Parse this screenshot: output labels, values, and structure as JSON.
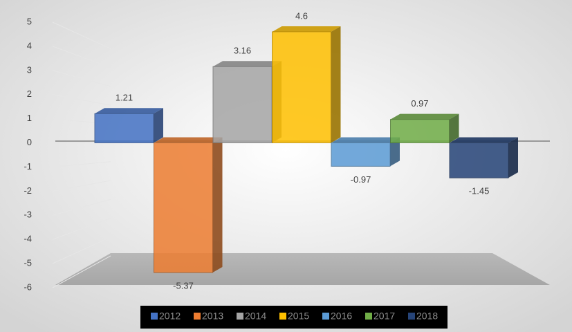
{
  "chart_data": {
    "type": "bar",
    "categories": [
      null
    ],
    "series": [
      {
        "name": "2012",
        "color": "#4472c4",
        "values": [
          1.21
        ]
      },
      {
        "name": "2013",
        "color": "#ed7d31",
        "values": [
          -5.37
        ]
      },
      {
        "name": "2014",
        "color": "#a5a5a5",
        "values": [
          3.16
        ]
      },
      {
        "name": "2015",
        "color": "#ffc000",
        "values": [
          4.6
        ]
      },
      {
        "name": "2016",
        "color": "#5b9bd5",
        "values": [
          -0.97
        ]
      },
      {
        "name": "2017",
        "color": "#70ad47",
        "values": [
          0.97
        ]
      },
      {
        "name": "2018",
        "color": "#264478",
        "values": [
          -1.45
        ]
      }
    ],
    "ylim": [
      -6,
      5
    ],
    "yticks": [
      -6,
      -5,
      -4,
      -3,
      -2,
      -1,
      0,
      1,
      2,
      3,
      4,
      5
    ],
    "grid": true
  }
}
